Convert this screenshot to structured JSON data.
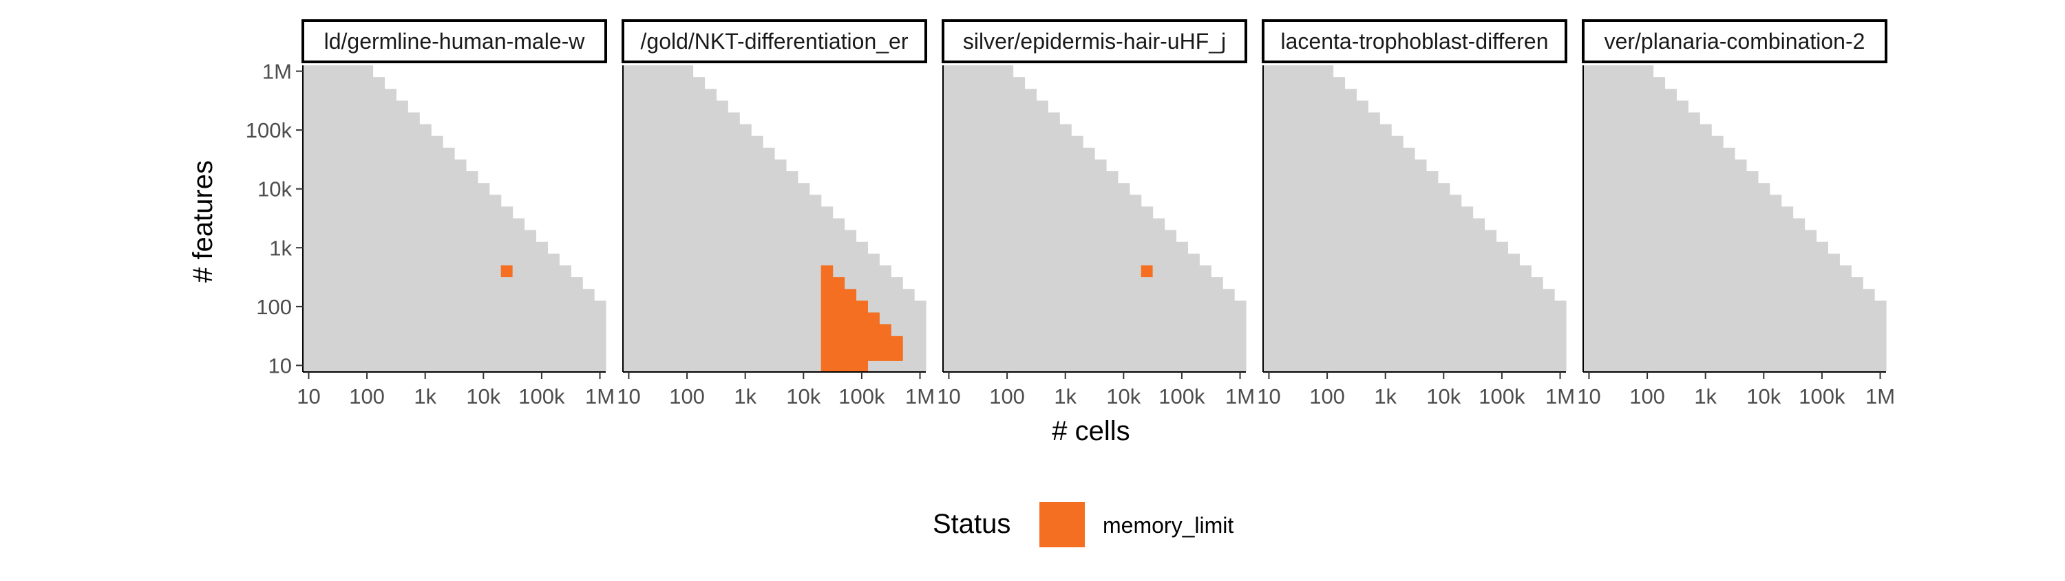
{
  "chart_data": {
    "type": "heatmap",
    "facet_type": "small-multiples",
    "xlabel": "# cells",
    "ylabel": "# features",
    "x_scale": "log10",
    "y_scale": "log10",
    "xlim": [
      10,
      1000000
    ],
    "ylim": [
      10,
      1000000
    ],
    "x_ticks": [
      {
        "value": 10,
        "label": "10"
      },
      {
        "value": 100,
        "label": "100"
      },
      {
        "value": 1000,
        "label": "1k"
      },
      {
        "value": 10000,
        "label": "10k"
      },
      {
        "value": 100000,
        "label": "100k"
      },
      {
        "value": 1000000,
        "label": "1M"
      }
    ],
    "y_ticks": [
      {
        "value": 10,
        "label": "10"
      },
      {
        "value": 100,
        "label": "100"
      },
      {
        "value": 1000,
        "label": "1k"
      },
      {
        "value": 10000,
        "label": "10k"
      },
      {
        "value": 100000,
        "label": "100k"
      },
      {
        "value": 1000000,
        "label": "1M"
      }
    ],
    "grid": false,
    "tile_log10_step": 0.2,
    "tile_domain_log10": {
      "x_min": 0.9,
      "x_max": 6.1,
      "y_min": 0.9,
      "y_max": 6.1
    },
    "valid_region_rule": "log10(cells) + log10(features) <= 8.1",
    "background_color": "#d3d3d3",
    "legend": {
      "title": "Status",
      "position": "bottom",
      "entries": [
        {
          "label": "memory_limit",
          "color": "#f46f22"
        }
      ]
    },
    "panels": [
      {
        "title": "ld/germline-human-male-w",
        "memory_limit_tiles": [
          {
            "cells": 25119,
            "features": 398
          }
        ]
      },
      {
        "title": "/gold/NKT-differentiation_er",
        "memory_limit_columns": [
          {
            "cells": 25119,
            "features_from": 10,
            "features_to": 398
          },
          {
            "cells": 39811,
            "features_from": 10,
            "features_to": 251
          },
          {
            "cells": 63096,
            "features_from": 10,
            "features_to": 158
          },
          {
            "cells": 100000,
            "features_from": 10,
            "features_to": 100
          },
          {
            "cells": 158489,
            "features_from": 15,
            "features_to": 63
          },
          {
            "cells": 251189,
            "features_from": 15,
            "features_to": 40
          },
          {
            "cells": 398107,
            "features_from": 15,
            "features_to": 25
          }
        ]
      },
      {
        "title": "silver/epidermis-hair-uHF_j",
        "memory_limit_tiles": [
          {
            "cells": 25119,
            "features": 398
          }
        ]
      },
      {
        "title": "lacenta-trophoblast-differen",
        "memory_limit_tiles": []
      },
      {
        "title": "ver/planaria-combination-2",
        "memory_limit_tiles": []
      }
    ]
  }
}
